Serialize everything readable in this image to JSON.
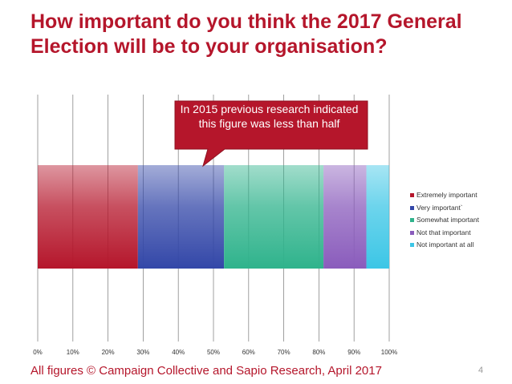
{
  "slide": {
    "title": "How important do you think the 2017 General Election will be to your organisation?",
    "callout": "In 2015 previous research indicated this figure was less than half",
    "footer": "All figures © Campaign Collective and Sapio Research, April 2017",
    "page_number": "4"
  },
  "chart_data": {
    "type": "bar",
    "orientation": "horizontal",
    "stacked": "100%",
    "categories": [
      ""
    ],
    "series": [
      {
        "name": "Extremely important",
        "values": [
          28.5
        ],
        "color": "#b5162b"
      },
      {
        "name": "Very important`",
        "values": [
          24.5
        ],
        "color": "#3347a8"
      },
      {
        "name": "Somewhat important",
        "values": [
          28.3
        ],
        "color": "#2fb38c"
      },
      {
        "name": "Not that important",
        "values": [
          12.2
        ],
        "color": "#8a5cbc"
      },
      {
        "name": "Not important at all",
        "values": [
          6.5
        ],
        "color": "#3cc6e6"
      }
    ],
    "xlim": [
      0,
      100
    ],
    "xticks": [
      "0%",
      "10%",
      "20%",
      "30%",
      "40%",
      "50%",
      "60%",
      "70%",
      "80%",
      "90%",
      "100%"
    ],
    "grid": true,
    "legend": "right"
  }
}
